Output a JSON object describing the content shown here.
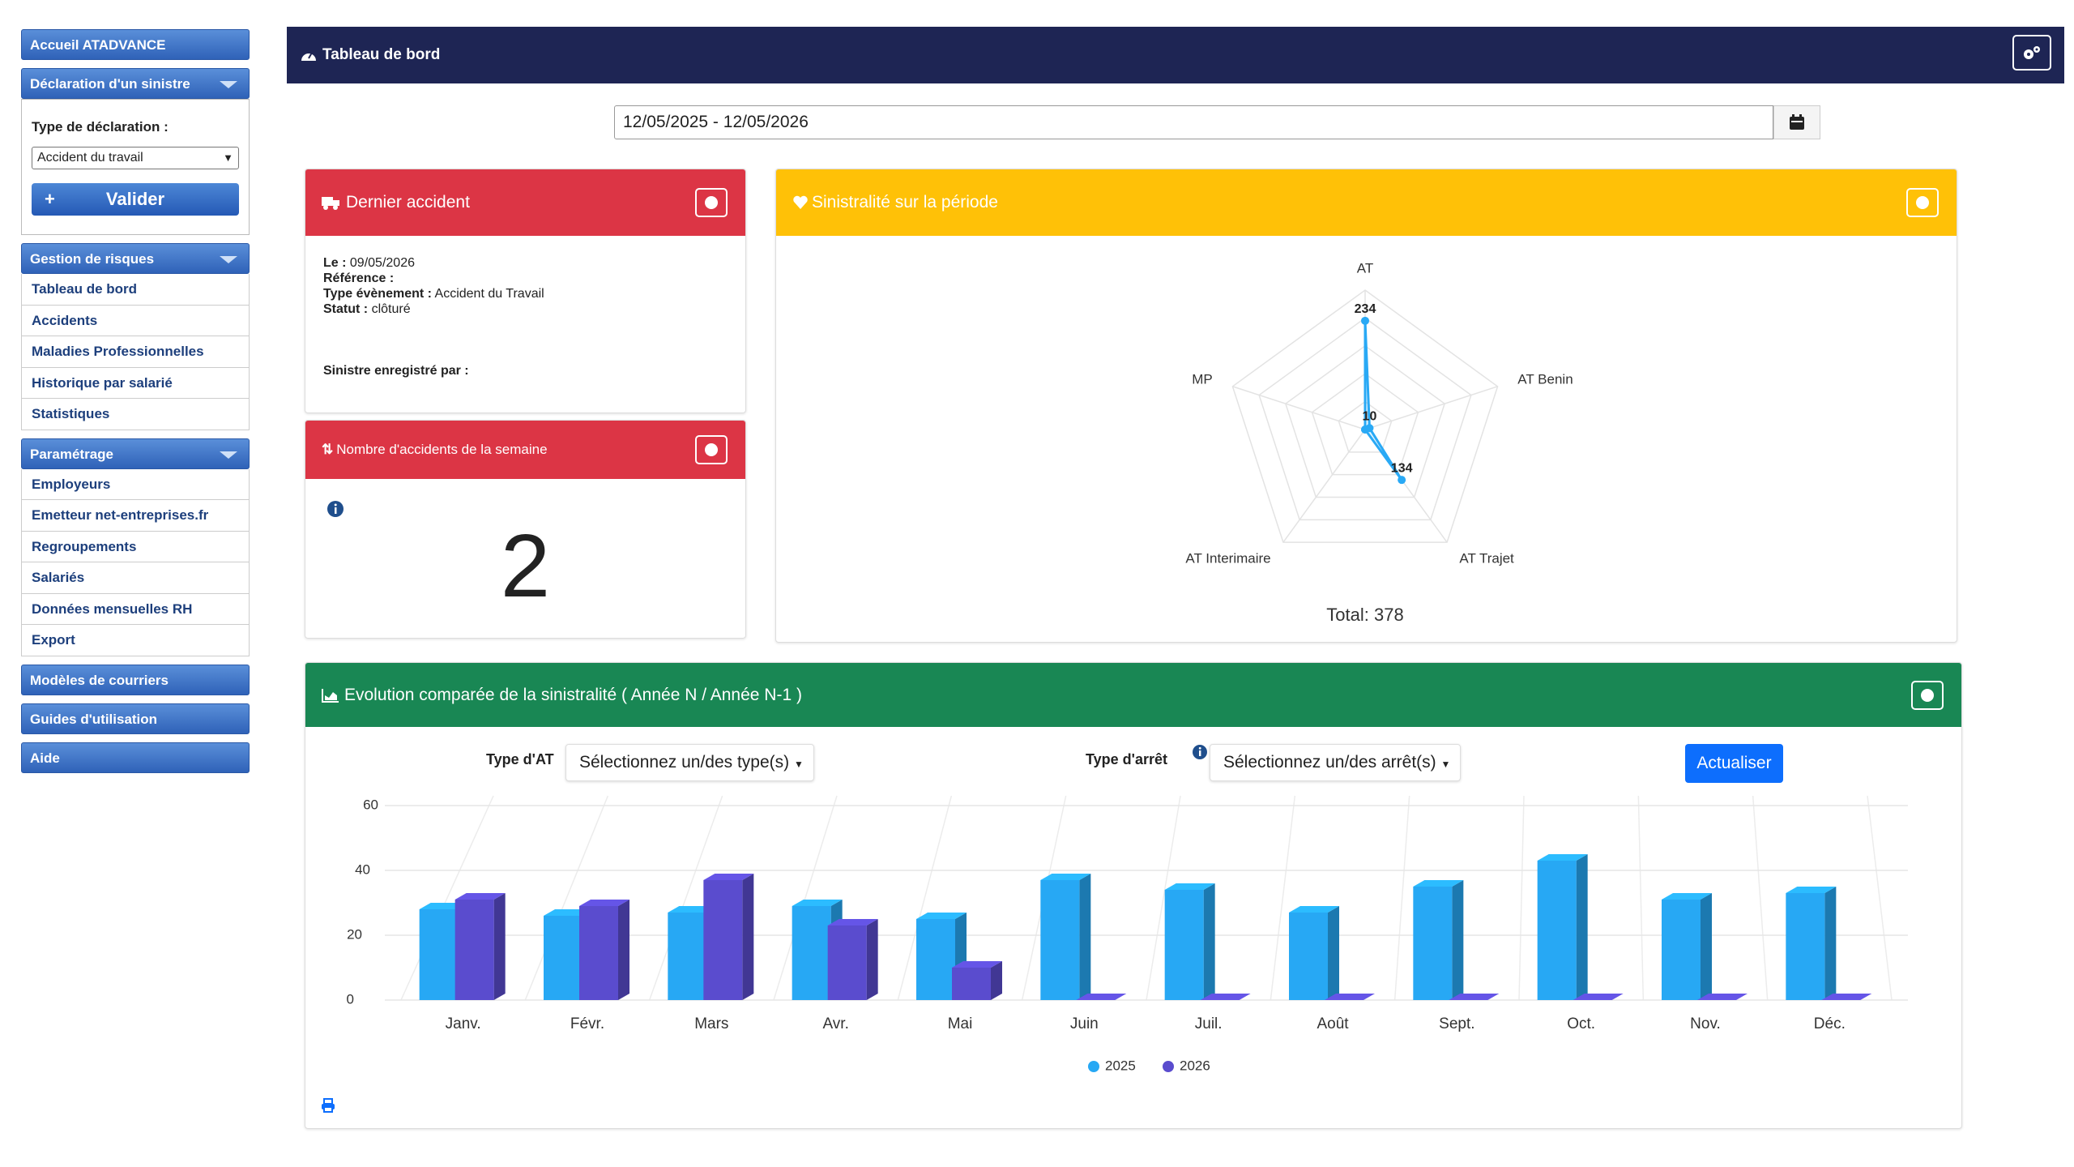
{
  "sidebar": {
    "home": "Accueil ATADVANCE",
    "declaration": {
      "title": "Déclaration d'un sinistre",
      "field_label": "Type de déclaration :",
      "select": "Accident du travail",
      "button_icon": "+",
      "button": "Valider"
    },
    "sections": [
      {
        "title": "Gestion de risques",
        "links": [
          "Tableau de bord",
          "Accidents",
          "Maladies Professionnelles",
          "Historique par salarié",
          "Statistiques"
        ]
      },
      {
        "title": "Paramétrage",
        "links": [
          "Employeurs",
          "Emetteur net-entreprises.fr",
          "Regroupements",
          "Salariés",
          "Données mensuelles RH",
          "Export"
        ]
      }
    ],
    "bottom": [
      "Modèles de courriers",
      "Guides d'utilisation",
      "Aide"
    ]
  },
  "header": {
    "title": "Tableau de bord"
  },
  "date_range": "12/05/2025 - 12/05/2026",
  "last_accident": {
    "title": "Dernier accident",
    "fields": [
      {
        "label": "Le :",
        "value": "09/05/2026"
      },
      {
        "label": "Référence :"
      },
      {
        "label": "Type évènement :",
        "value": "Accident du Travail"
      },
      {
        "label": "Statut :",
        "value": "clôturé"
      }
    ],
    "recorded_by": "Sinistre enregistré par :"
  },
  "week": {
    "title": "Nombre d'accidents de la semaine",
    "value": 2
  },
  "filters": {
    "type_at_label": "Type d'AT",
    "type_at_select": "Sélectionnez un/des type(s)",
    "type_arret_label": "Type d'arrêt",
    "type_arret_select": "Sélectionnez un/des arrêt(s)",
    "button": "Actualiser"
  },
  "chart_data": [
    {
      "type": "radar",
      "title": "Sinistralité sur la période",
      "categories": [
        "AT",
        "AT Benin",
        "AT Trajet",
        "AT Interimaire",
        "MP"
      ],
      "values": [
        234,
        10,
        134,
        0,
        0
      ],
      "value_labels": [
        "234",
        "10",
        "134",
        null,
        null
      ],
      "color": "#29a9f5",
      "rlim": [
        0,
        300
      ],
      "total_label": "Total:",
      "total": 378
    },
    {
      "type": "bar3d",
      "title": "Evolution comparée de la sinistralité ( Année N / Année N-1 )",
      "categories": [
        "Janv.",
        "Févr.",
        "Mars",
        "Avr.",
        "Mai",
        "Juin",
        "Juil.",
        "Août",
        "Sept.",
        "Oct.",
        "Nov.",
        "Déc."
      ],
      "series": [
        {
          "name": "2025",
          "color": "#27a8f4",
          "values": [
            28,
            26,
            27,
            29,
            25,
            37,
            34,
            27,
            35,
            43,
            31,
            33
          ]
        },
        {
          "name": "2026",
          "color": "#5a4cce",
          "values": [
            31,
            29,
            37,
            23,
            10,
            0,
            0,
            0,
            0,
            0,
            0,
            0
          ]
        }
      ],
      "ylim": [
        0,
        60
      ],
      "yticks": [
        0,
        20,
        40,
        60
      ],
      "grid": true,
      "legend": "bottom"
    }
  ]
}
